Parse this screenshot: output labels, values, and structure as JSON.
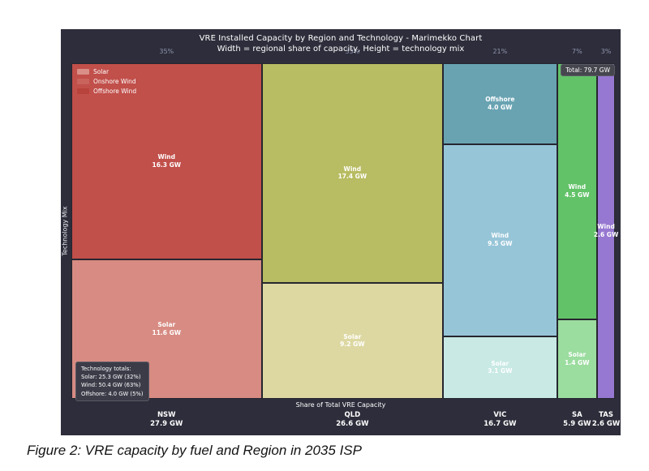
{
  "page": {
    "caption": "Figure 2: VRE capacity by fuel and Region in 2035 ISP"
  },
  "chart": {
    "total_label": "Total: 79.7 GW",
    "background_color": "#2d2d3b",
    "percent_label_color": "#8f95ac",
    "legend": {
      "items": [
        {
          "label": "Solar",
          "color": "#d98f87"
        },
        {
          "label": "Onshore Wind",
          "color": "#c9645d"
        },
        {
          "label": "Offshore Wind",
          "color": "#b8423c"
        }
      ]
    },
    "totals_box": {
      "lines": [
        "Technology totals:",
        "Solar: 25.3 GW (32%)",
        "Wind: 50.4 GW (63%)",
        "Offshore: 4.0 GW (5%)"
      ]
    }
  },
  "chart_data": {
    "type": "marimekko",
    "title": "VRE Installed Capacity by Region and Technology - Marimekko Chart",
    "subtitle": "Width = regional share of capacity, Height = technology mix",
    "xlabel": "Share of Total VRE Capacity",
    "ylabel": "Technology Mix",
    "unit": "GW",
    "total_gw": 79.7,
    "columns": [
      {
        "region": "NSW",
        "total_gw": 27.9,
        "share_label": "35%",
        "segments": [
          {
            "tech": "Wind",
            "gw": 16.3,
            "color": "#c14f4a"
          },
          {
            "tech": "Solar",
            "gw": 11.6,
            "color": "#d78b82"
          }
        ]
      },
      {
        "region": "QLD",
        "total_gw": 26.6,
        "share_label": "33%",
        "segments": [
          {
            "tech": "Wind",
            "gw": 17.4,
            "color": "#b8bc62"
          },
          {
            "tech": "Solar",
            "gw": 9.2,
            "color": "#ddd8a2"
          }
        ]
      },
      {
        "region": "VIC",
        "total_gw": 16.7,
        "share_label": "21%",
        "segments": [
          {
            "tech": "Offshore",
            "gw": 4.0,
            "color": "#69a3b2"
          },
          {
            "tech": "Wind",
            "gw": 9.5,
            "color": "#97c5d8"
          },
          {
            "tech": "Solar",
            "gw": 3.1,
            "color": "#c8e9e4"
          }
        ]
      },
      {
        "region": "SA",
        "total_gw": 5.9,
        "share_label": "7%",
        "segments": [
          {
            "tech": "Wind",
            "gw": 4.5,
            "color": "#62c268"
          },
          {
            "tech": "Solar",
            "gw": 1.4,
            "color": "#9bdc9f"
          }
        ]
      },
      {
        "region": "TAS",
        "total_gw": 2.6,
        "share_label": "3%",
        "segments": [
          {
            "tech": "Wind",
            "gw": 2.6,
            "color": "#9677d1"
          }
        ]
      }
    ]
  }
}
